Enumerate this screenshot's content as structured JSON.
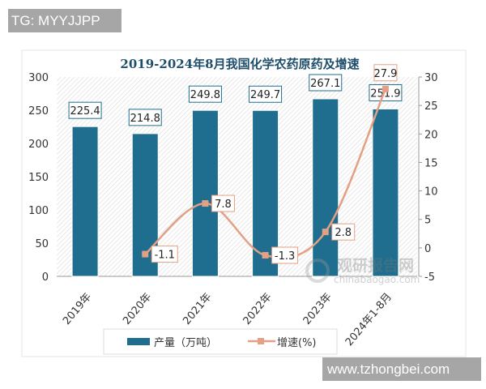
{
  "watermarks": {
    "top_left": "TG: MYYJJPP",
    "bottom_right": "www.tzhongbei.com",
    "chart_logo": "观研报告网",
    "chart_logo_url": "chinabaogao.com"
  },
  "chart_data": {
    "type": "bar",
    "title": "2019-2024年8月我国化学农药原药及增速",
    "categories": [
      "2019年",
      "2020年",
      "2021年",
      "2022年",
      "2023年",
      "2024年1-8月"
    ],
    "series": [
      {
        "name": "产量（万吨）",
        "type": "bar",
        "axis": "left",
        "color": "#1f6e8f",
        "values": [
          225.4,
          214.8,
          249.8,
          249.7,
          267.1,
          251.9
        ]
      },
      {
        "name": "增速(%)",
        "type": "line",
        "axis": "right",
        "color": "#e3a083",
        "values": [
          null,
          -1.1,
          7.8,
          -1.3,
          2.8,
          27.9
        ]
      }
    ],
    "left_axis": {
      "ylim": [
        0,
        300
      ],
      "ticks": [
        0,
        50,
        100,
        150,
        200,
        250,
        300
      ]
    },
    "right_axis": {
      "ylim": [
        -5,
        30
      ],
      "ticks": [
        -5,
        0,
        5,
        10,
        15,
        20,
        25,
        30
      ]
    },
    "grid": false,
    "legend": "bottom"
  }
}
